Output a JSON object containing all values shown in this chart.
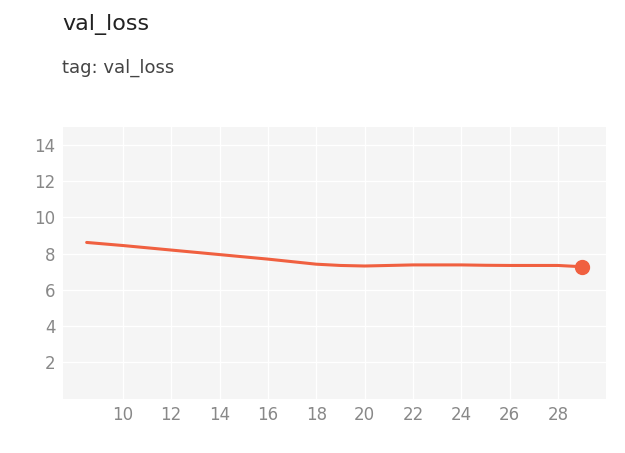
{
  "title": "val_loss",
  "subtitle": "tag: val_loss",
  "line_color": "#f06040",
  "marker_color": "#f06040",
  "background_color": "#ffffff",
  "plot_bg_color": "#f5f5f5",
  "grid_color": "#ffffff",
  "x_values": [
    8.5,
    10,
    12,
    14,
    16,
    18,
    19,
    20,
    21,
    22,
    23,
    24,
    25,
    26,
    27,
    28,
    29
  ],
  "y_values": [
    8.62,
    8.45,
    8.2,
    7.95,
    7.7,
    7.42,
    7.35,
    7.32,
    7.35,
    7.38,
    7.38,
    7.38,
    7.36,
    7.35,
    7.35,
    7.35,
    7.28
  ],
  "xlim": [
    7.5,
    30
  ],
  "ylim": [
    0,
    15
  ],
  "xticks": [
    10,
    12,
    14,
    16,
    18,
    20,
    22,
    24,
    26,
    28
  ],
  "yticks": [
    2,
    4,
    6,
    8,
    10,
    12,
    14
  ],
  "title_fontsize": 16,
  "subtitle_fontsize": 13,
  "tick_fontsize": 12,
  "tick_color": "#888888",
  "line_width": 2.2,
  "marker_size": 10
}
